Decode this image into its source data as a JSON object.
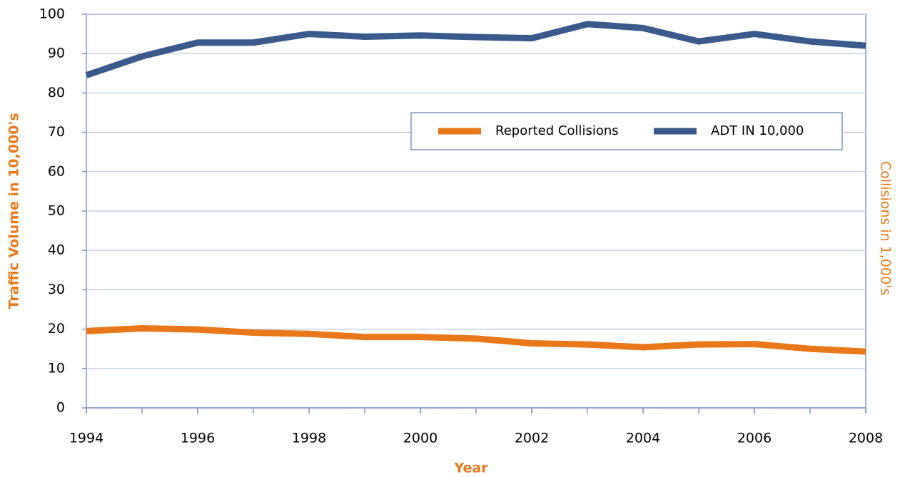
{
  "chart_data": {
    "type": "line",
    "x_label": "Year",
    "y_label": "Traffic Volume in 10,000's",
    "y2_label": "Collisions in 1,000's",
    "x": [
      1994,
      1995,
      1996,
      1997,
      1998,
      1999,
      2000,
      2001,
      2002,
      2003,
      2004,
      2005,
      2006,
      2007,
      2008
    ],
    "series": [
      {
        "name": "Reported Collisions",
        "color": "#e8781a",
        "values": [
          19.5,
          20.2,
          19.9,
          19.1,
          18.8,
          18.0,
          18.0,
          17.6,
          16.4,
          16.1,
          15.4,
          16.1,
          16.2,
          15.0,
          14.3
        ]
      },
      {
        "name": "ADT IN 10,000",
        "color": "#3a5a8c",
        "values": [
          84.5,
          89.3,
          92.8,
          92.8,
          95.0,
          94.3,
          94.6,
          94.2,
          93.9,
          97.5,
          96.5,
          93.1,
          95.0,
          93.1,
          92.0
        ]
      }
    ],
    "xlim": [
      1994,
      2008
    ],
    "xticks": [
      1994,
      1996,
      1998,
      2000,
      2002,
      2004,
      2006,
      2008
    ],
    "ylim": [
      0,
      100
    ],
    "yticks": [
      0,
      10,
      20,
      30,
      40,
      50,
      60,
      70,
      80,
      90,
      100
    ],
    "grid": true,
    "legend": "upper right"
  }
}
